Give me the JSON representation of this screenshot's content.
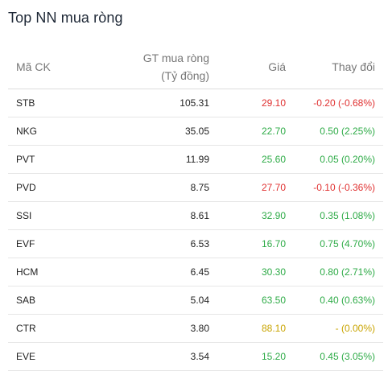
{
  "title": "Top NN mua ròng",
  "headers": {
    "code": "Mã CK",
    "value_line1": "GT mua ròng",
    "value_line2": "(Tỷ đồng)",
    "price": "Giá",
    "change": "Thay đổi"
  },
  "colors": {
    "up": "#2eab47",
    "down": "#e03131",
    "unchanged": "#c9a400"
  },
  "rows": [
    {
      "code": "STB",
      "value": "105.31",
      "price": "29.10",
      "change": "-0.20 (-0.68%)",
      "trend": "down"
    },
    {
      "code": "NKG",
      "value": "35.05",
      "price": "22.70",
      "change": "0.50 (2.25%)",
      "trend": "up"
    },
    {
      "code": "PVT",
      "value": "11.99",
      "price": "25.60",
      "change": "0.05 (0.20%)",
      "trend": "up"
    },
    {
      "code": "PVD",
      "value": "8.75",
      "price": "27.70",
      "change": "-0.10 (-0.36%)",
      "trend": "down"
    },
    {
      "code": "SSI",
      "value": "8.61",
      "price": "32.90",
      "change": "0.35 (1.08%)",
      "trend": "up"
    },
    {
      "code": "EVF",
      "value": "6.53",
      "price": "16.70",
      "change": "0.75 (4.70%)",
      "trend": "up"
    },
    {
      "code": "HCM",
      "value": "6.45",
      "price": "30.30",
      "change": "0.80 (2.71%)",
      "trend": "up"
    },
    {
      "code": "SAB",
      "value": "5.04",
      "price": "63.50",
      "change": "0.40 (0.63%)",
      "trend": "up"
    },
    {
      "code": "CTR",
      "value": "3.80",
      "price": "88.10",
      "change": "- (0.00%)",
      "trend": "flat"
    },
    {
      "code": "EVE",
      "value": "3.54",
      "price": "15.20",
      "change": "0.45 (3.05%)",
      "trend": "up"
    }
  ]
}
